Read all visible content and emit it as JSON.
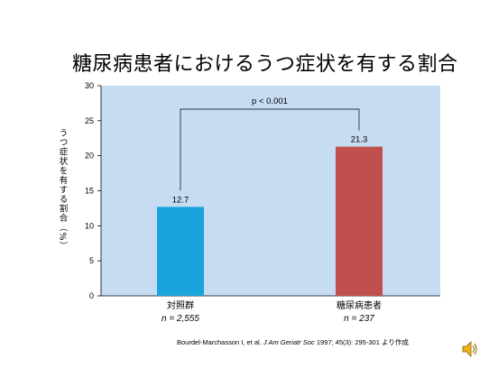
{
  "title": "糖尿病患者におけるうつ症状を有する割合",
  "chart_data": {
    "type": "bar",
    "ylabel": "うつ症状を有する割合（%）",
    "ylim": [
      0,
      30
    ],
    "yticks": [
      0,
      5,
      10,
      15,
      20,
      25,
      30
    ],
    "categories": [
      "対照群",
      "糖尿病患者"
    ],
    "n_labels": [
      "n = 2,555",
      "n = 237"
    ],
    "values": [
      12.7,
      21.3
    ],
    "value_labels": [
      "12.7",
      "21.3"
    ],
    "bar_colors": [
      "#1aa3dc",
      "#c0504d"
    ],
    "significance": "p < 0.001",
    "grid": false
  },
  "citation": {
    "authors": "Bourdel-Marchasson I, et al.",
    "journal": "J Am Geriatr Soc",
    "details": "1997; 45(3): 295-301",
    "suffix": "より作成"
  },
  "colors": {
    "plot_background": "#c6dcf3"
  },
  "icons": [
    "speaker-icon"
  ]
}
